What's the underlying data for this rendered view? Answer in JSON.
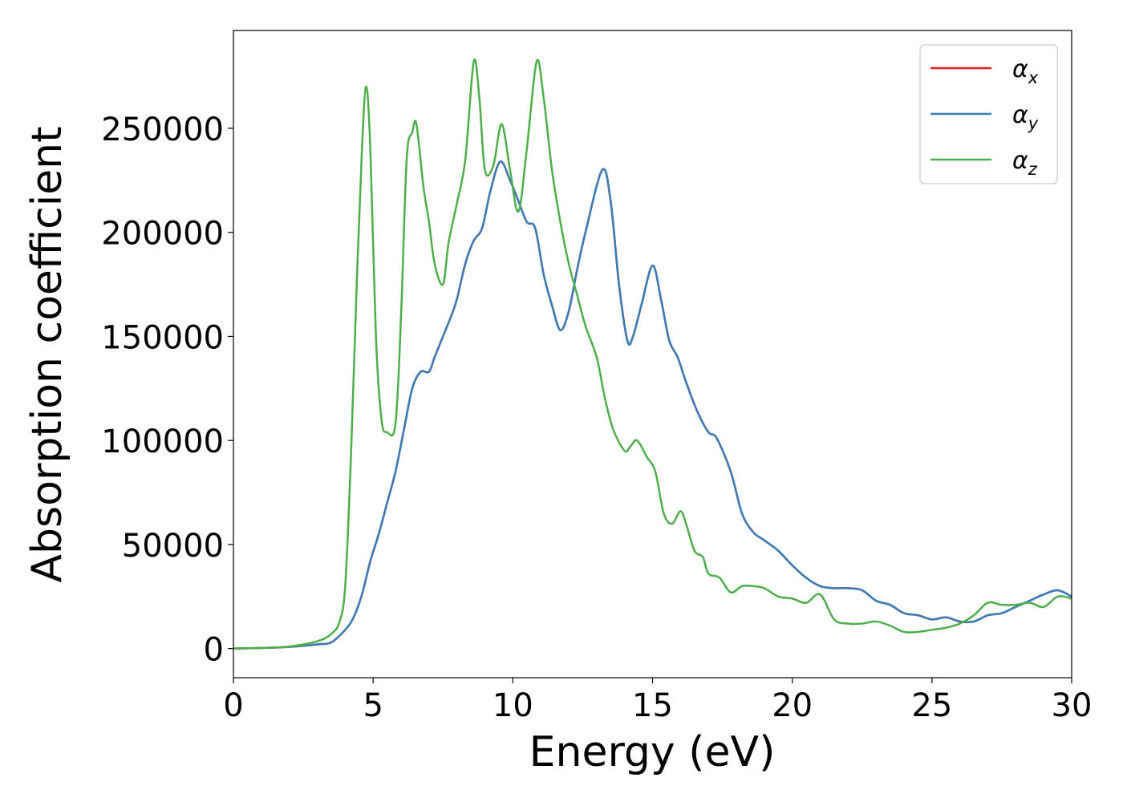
{
  "chart_data": {
    "type": "line",
    "xlabel": "Energy (eV)",
    "ylabel": "Absorption coefficient",
    "xlim": [
      0,
      30
    ],
    "ylim": [
      -14000,
      297000
    ],
    "xticks": [
      "0",
      "5",
      "10",
      "15",
      "20",
      "25",
      "30"
    ],
    "yticks": [
      "0",
      "50000",
      "100000",
      "150000",
      "200000",
      "250000"
    ],
    "grid": false,
    "legend_position": "top-right",
    "series": [
      {
        "name": "α_x",
        "legend_main": "α",
        "legend_sub": "x",
        "color": "#e41a1c",
        "x": [
          0,
          1,
          2,
          3,
          3.5,
          4,
          4.3,
          4.6,
          4.9,
          5.2,
          5.5,
          5.8,
          6.1,
          6.4,
          6.7,
          7.0,
          7.2,
          7.5,
          7.8,
          8.0,
          8.3,
          8.6,
          8.9,
          9.2,
          9.55,
          9.9,
          10.2,
          10.5,
          10.8,
          11.1,
          11.4,
          11.7,
          12.0,
          12.3,
          12.6,
          13.2,
          13.5,
          13.8,
          14.1,
          14.3,
          14.6,
          15.0,
          15.3,
          15.6,
          15.9,
          16.2,
          16.6,
          17.0,
          17.3,
          17.8,
          18.2,
          18.6,
          19.0,
          19.5,
          20.0,
          20.5,
          21.0,
          21.5,
          22.0,
          22.5,
          23.0,
          23.5,
          24.0,
          24.5,
          25.0,
          25.5,
          26.0,
          26.5,
          27.0,
          27.5,
          28.0,
          28.5,
          29.0,
          29.5,
          30.0
        ],
        "y": [
          0,
          300,
          800,
          2000,
          3000,
          9000,
          15000,
          26000,
          42000,
          55000,
          70000,
          85000,
          105000,
          125000,
          133000,
          133000,
          140000,
          150000,
          160000,
          168000,
          185000,
          196000,
          202000,
          220000,
          234000,
          225000,
          215000,
          205000,
          202000,
          180000,
          165000,
          153000,
          162000,
          182000,
          200000,
          230000,
          215000,
          175000,
          148000,
          150000,
          165000,
          184000,
          168000,
          148000,
          140000,
          128000,
          114000,
          104000,
          101000,
          85000,
          65000,
          56000,
          52000,
          47000,
          40000,
          34000,
          30000,
          29000,
          29000,
          28000,
          23000,
          21000,
          17000,
          16000,
          14000,
          15000,
          13000,
          13000,
          16000,
          17000,
          20000,
          23000,
          26000,
          28000,
          25000
        ]
      },
      {
        "name": "α_y",
        "legend_main": "α",
        "legend_sub": "y",
        "color": "#377eb8",
        "x": [
          0,
          1,
          2,
          3,
          3.5,
          4,
          4.3,
          4.6,
          4.9,
          5.2,
          5.5,
          5.8,
          6.1,
          6.4,
          6.7,
          7.0,
          7.2,
          7.5,
          7.8,
          8.0,
          8.3,
          8.6,
          8.9,
          9.2,
          9.55,
          9.9,
          10.2,
          10.5,
          10.8,
          11.1,
          11.4,
          11.7,
          12.0,
          12.3,
          12.6,
          13.2,
          13.5,
          13.8,
          14.1,
          14.3,
          14.6,
          15.0,
          15.3,
          15.6,
          15.9,
          16.2,
          16.6,
          17.0,
          17.3,
          17.8,
          18.2,
          18.6,
          19.0,
          19.5,
          20.0,
          20.5,
          21.0,
          21.5,
          22.0,
          22.5,
          23.0,
          23.5,
          24.0,
          24.5,
          25.0,
          25.5,
          26.0,
          26.5,
          27.0,
          27.5,
          28.0,
          28.5,
          29.0,
          29.5,
          30.0
        ],
        "y": [
          0,
          300,
          800,
          2000,
          3000,
          9000,
          15000,
          26000,
          42000,
          55000,
          70000,
          85000,
          105000,
          125000,
          133000,
          133000,
          140000,
          150000,
          160000,
          168000,
          185000,
          196000,
          202000,
          220000,
          234000,
          225000,
          215000,
          205000,
          202000,
          180000,
          165000,
          153000,
          162000,
          182000,
          200000,
          230000,
          215000,
          175000,
          148000,
          150000,
          165000,
          184000,
          168000,
          148000,
          140000,
          128000,
          114000,
          104000,
          101000,
          85000,
          65000,
          56000,
          52000,
          47000,
          40000,
          34000,
          30000,
          29000,
          29000,
          28000,
          23000,
          21000,
          17000,
          16000,
          14000,
          15000,
          13000,
          13000,
          16000,
          17000,
          20000,
          23000,
          26000,
          28000,
          25000
        ]
      },
      {
        "name": "α_z",
        "legend_main": "α",
        "legend_sub": "z",
        "color": "#4daf4a",
        "x": [
          0,
          1,
          2,
          3,
          3.5,
          3.8,
          4.0,
          4.2,
          4.4,
          4.6,
          4.75,
          4.9,
          5.1,
          5.3,
          5.5,
          5.8,
          6.0,
          6.2,
          6.4,
          6.55,
          6.8,
          7.0,
          7.2,
          7.5,
          7.7,
          8.0,
          8.3,
          8.6,
          8.8,
          9.0,
          9.3,
          9.6,
          9.9,
          10.2,
          10.5,
          10.85,
          11.1,
          11.4,
          11.7,
          12.0,
          12.3,
          12.6,
          13.0,
          13.3,
          13.6,
          14.0,
          14.2,
          14.45,
          14.8,
          15.1,
          15.4,
          15.7,
          16.0,
          16.2,
          16.5,
          16.8,
          17.0,
          17.4,
          17.8,
          18.2,
          18.6,
          19.0,
          19.5,
          20.0,
          20.5,
          21.0,
          21.5,
          22.0,
          22.5,
          23.0,
          23.5,
          24.0,
          24.5,
          25.0,
          25.5,
          26.0,
          26.5,
          27.0,
          27.5,
          28.0,
          28.5,
          29.0,
          29.5,
          30.0
        ],
        "y": [
          0,
          300,
          1000,
          3500,
          7000,
          13000,
          30000,
          90000,
          170000,
          240000,
          270000,
          240000,
          150000,
          110000,
          104000,
          108000,
          160000,
          235000,
          248000,
          252000,
          222000,
          205000,
          185000,
          175000,
          195000,
          214000,
          235000,
          282000,
          265000,
          230000,
          232000,
          252000,
          230000,
          210000,
          240000,
          282000,
          265000,
          230000,
          205000,
          185000,
          170000,
          155000,
          140000,
          120000,
          105000,
          95000,
          97000,
          100000,
          92000,
          85000,
          65000,
          60000,
          66000,
          60000,
          47000,
          44000,
          36000,
          34000,
          27000,
          30000,
          30000,
          29000,
          25000,
          24000,
          22000,
          26000,
          14000,
          12000,
          12000,
          13000,
          11000,
          8000,
          8000,
          9000,
          10000,
          12000,
          16000,
          22000,
          21000,
          21000,
          22000,
          20000,
          25000,
          24000
        ]
      }
    ]
  }
}
